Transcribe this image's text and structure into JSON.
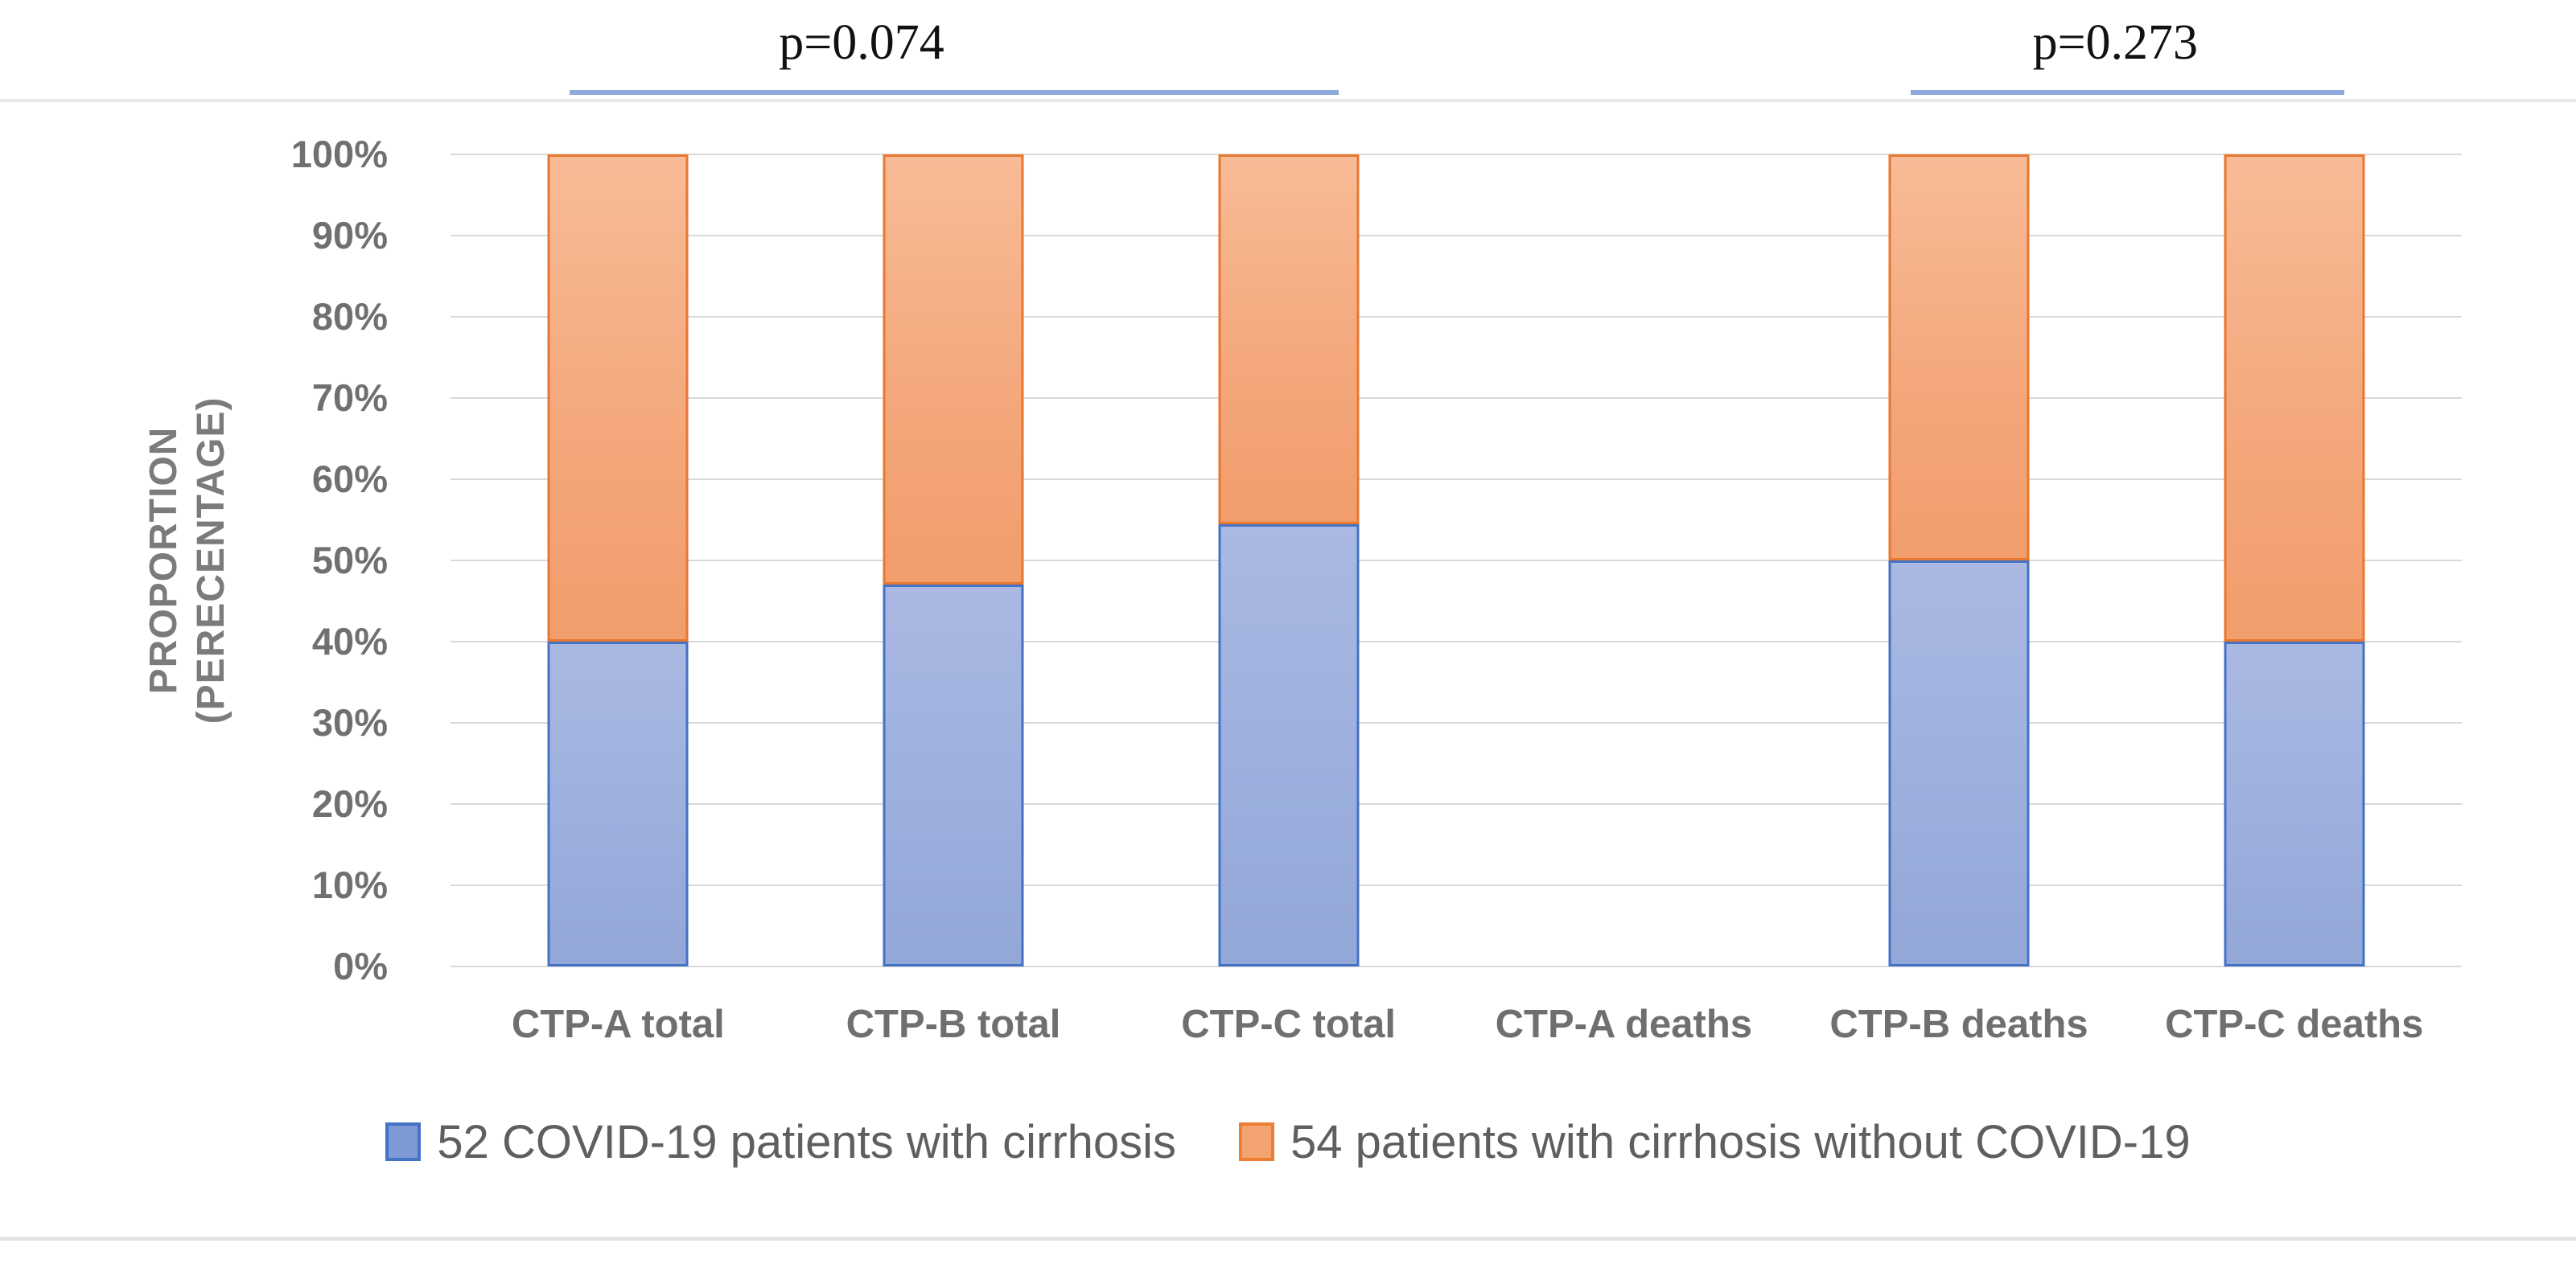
{
  "chart_data": {
    "type": "bar",
    "variant": "100-percent-stacked-column",
    "title": "",
    "ylabel_lines": [
      "PROPORTION",
      "(PERECENTAGE)"
    ],
    "xlabel": "",
    "ylim": [
      0,
      100
    ],
    "grid": true,
    "legend_position": "bottom",
    "y_ticks": [
      "100%",
      "90%",
      "80%",
      "70%",
      "60%",
      "50%",
      "40%",
      "30%",
      "20%",
      "10%",
      "0%"
    ],
    "categories": [
      "CTP-A total",
      "CTP-B total",
      "CTP-C total",
      "CTP-A deaths",
      "CTP-B deaths",
      "CTP-C deaths"
    ],
    "series": [
      {
        "name": "52 COVID-19 patients with cirrhosis",
        "role": "covid",
        "fill_color": "#9CAFDD",
        "border_color": "#4472C4",
        "values": [
          40,
          47,
          54.5,
          null,
          50,
          40
        ]
      },
      {
        "name": "54 patients with cirrhosis without COVID-19",
        "role": "noncovid",
        "fill_color": "#F4A87C",
        "border_color": "#ED7D31",
        "values": [
          60,
          53,
          45.5,
          null,
          50,
          60
        ]
      }
    ],
    "annotations": [
      {
        "label": "p=0.074",
        "from_category": 0,
        "to_category": 2,
        "line_color": "#8EA9DB"
      },
      {
        "label": "p=0.273",
        "from_category": 4,
        "to_category": 5,
        "line_color": "#8EA9DB"
      }
    ]
  }
}
